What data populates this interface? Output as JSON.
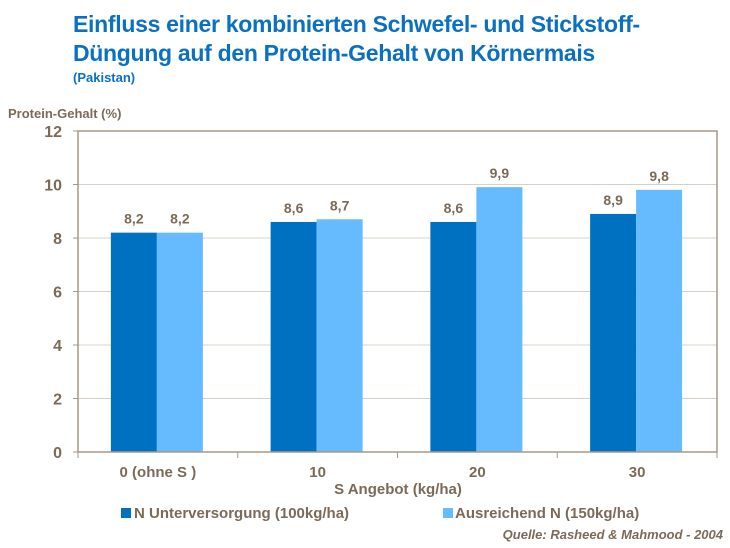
{
  "chart_data": {
    "type": "bar",
    "title": "Einfluss einer kombinierten Schwefel- und Stickstoff-Düngung auf den Protein-Gehalt von Körnermais",
    "subtitle": "(Pakistan)",
    "xlabel": "S Angebot (kg/ha)",
    "ylabel": "Protein-Gehalt  (%)",
    "categories": [
      "0 (ohne S )",
      "10",
      "20",
      "30"
    ],
    "series": [
      {
        "name": "N Unterversorgung (100kg/ha)",
        "values": [
          8.2,
          8.6,
          8.6,
          8.9
        ],
        "labels": [
          "8,2",
          "8,6",
          "8,6",
          "8,9"
        ],
        "color": "#0070c0"
      },
      {
        "name": "Ausreichend N (150kg/ha)",
        "values": [
          8.2,
          8.7,
          9.9,
          9.8
        ],
        "labels": [
          "8,2",
          "8,7",
          "9,9",
          "9,8"
        ],
        "color": "#66bbff"
      }
    ],
    "ylim": [
      0,
      12
    ],
    "yticks": [
      "0",
      "2",
      "4",
      "6",
      "8",
      "10",
      "12"
    ],
    "grid": true,
    "legend": "bottom",
    "source": "Quelle: Rasheed & Mahmood - 2004"
  }
}
